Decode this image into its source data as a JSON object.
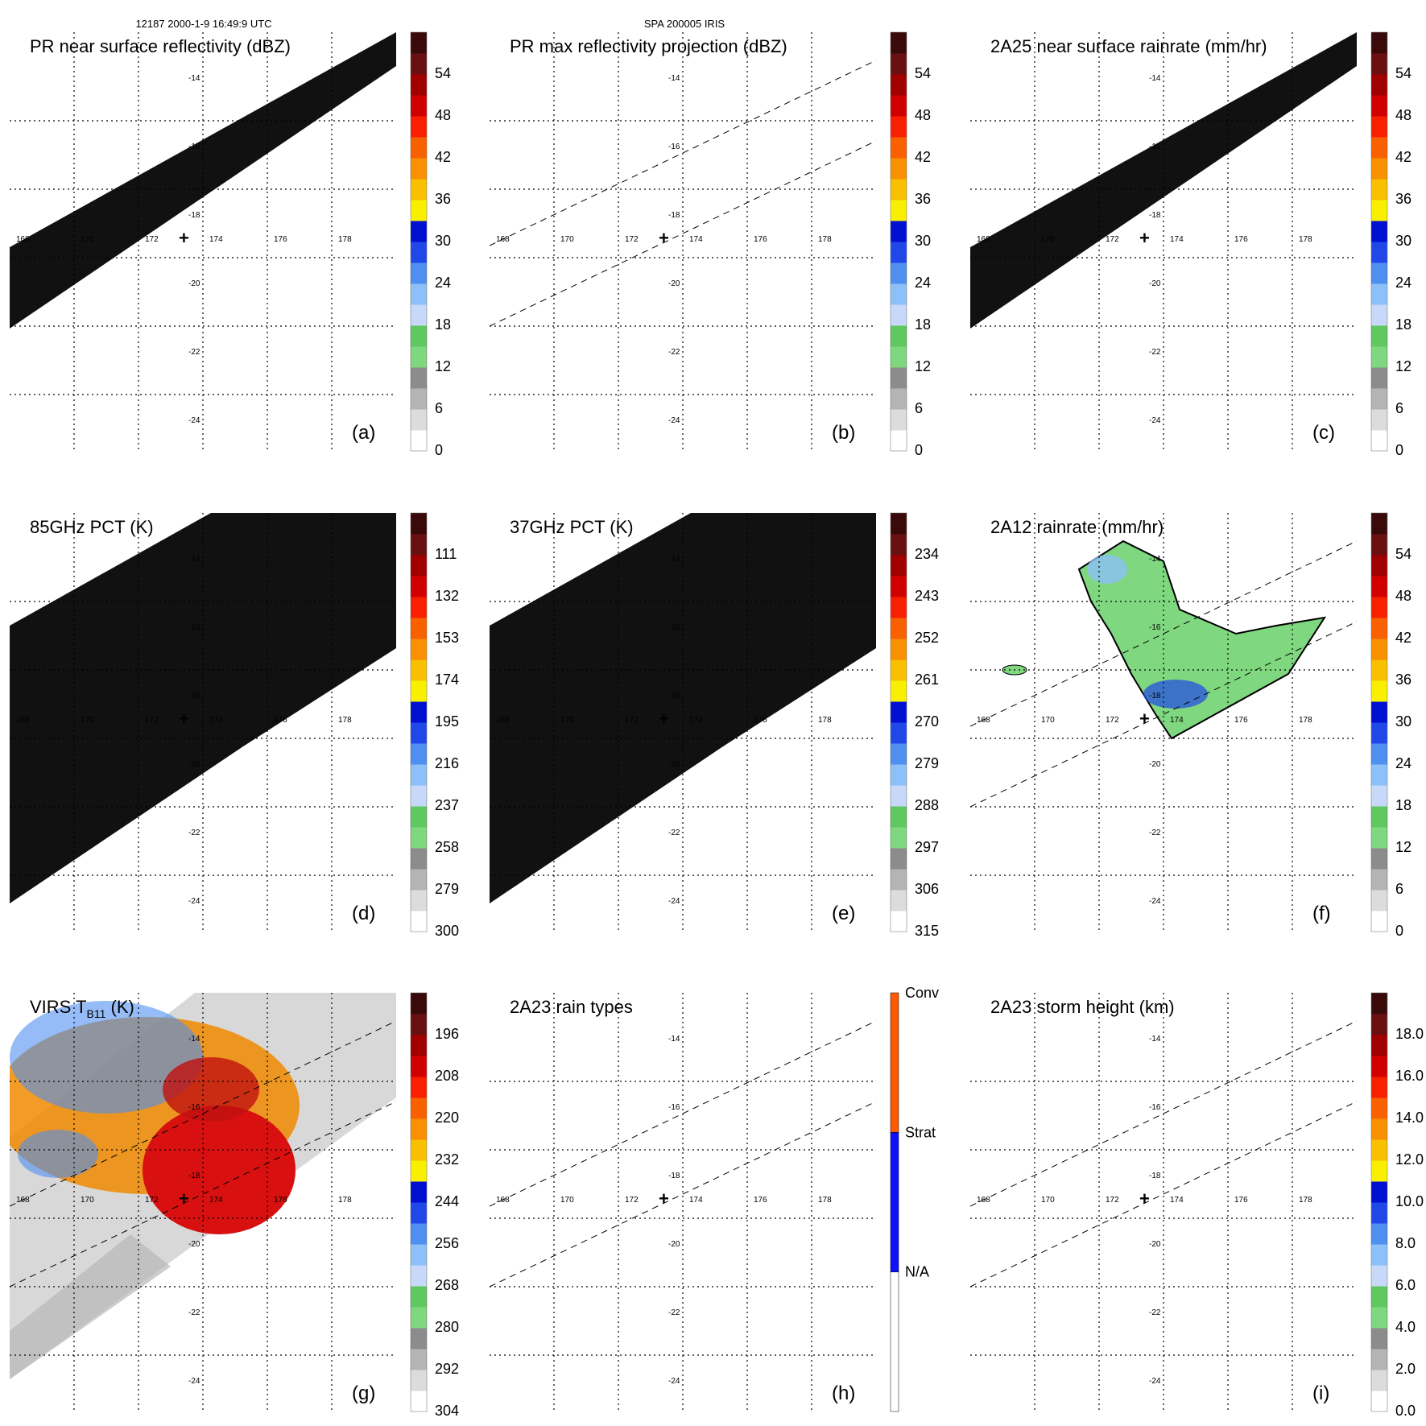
{
  "header": {
    "left": "12187 2000-1-9 16:49:9 UTC",
    "center": "SPA 200005 IRIS"
  },
  "colors": {
    "swath": "#111111",
    "ramp": [
      "#ffffff",
      "#dcdcdc",
      "#b4b4b4",
      "#8c8c8c",
      "#7fd77f",
      "#5fc85f",
      "#c8d8f8",
      "#8cc0f8",
      "#4f8ff0",
      "#2048e8",
      "#0010d0",
      "#f8f000",
      "#f8c000",
      "#f89000",
      "#f86000",
      "#f82000",
      "#d00000",
      "#a00000",
      "#6a1010",
      "#3a0a0a"
    ],
    "rain_types": {
      "Conv": "#ff5a00",
      "Strat": "#1010ff",
      "N/A": "#ffffff"
    }
  },
  "chart_data": [
    {
      "id": "a",
      "type": "heatmap",
      "title": "PR near surface reflectivity (dBZ)",
      "label": "(a)",
      "swath": true,
      "track": false,
      "vira": false,
      "colorbar": {
        "ticks": [
          "0",
          "6",
          "12",
          "18",
          "24",
          "30",
          "36",
          "42",
          "48",
          "54"
        ],
        "range": [
          0,
          60
        ]
      }
    },
    {
      "id": "b",
      "type": "heatmap",
      "title": "PR max reflectivity projection (dBZ)",
      "label": "(b)",
      "swath": false,
      "track": true,
      "vira": false,
      "colorbar": {
        "ticks": [
          "0",
          "6",
          "12",
          "18",
          "24",
          "30",
          "36",
          "42",
          "48",
          "54"
        ],
        "range": [
          0,
          60
        ]
      }
    },
    {
      "id": "c",
      "type": "heatmap",
      "title": "2A25 near surface rainrate (mm/hr)",
      "label": "(c)",
      "swath": true,
      "track": false,
      "vira": false,
      "colorbar": {
        "ticks": [
          "0",
          "6",
          "12",
          "18",
          "24",
          "30",
          "36",
          "42",
          "48",
          "54"
        ],
        "range": [
          0,
          60
        ]
      }
    },
    {
      "id": "d",
      "type": "heatmap",
      "title": "85GHz PCT (K)",
      "label": "(d)",
      "swath": "wide",
      "track": false,
      "vira": false,
      "colorbar": {
        "ticks": [
          "300",
          "279",
          "258",
          "237",
          "216",
          "195",
          "174",
          "153",
          "132",
          "111"
        ],
        "range": [
          300,
          90
        ]
      }
    },
    {
      "id": "e",
      "type": "heatmap",
      "title": "37GHz PCT (K)",
      "label": "(e)",
      "swath": "wide",
      "track": false,
      "vira": false,
      "colorbar": {
        "ticks": [
          "315",
          "306",
          "297",
          "288",
          "279",
          "270",
          "261",
          "252",
          "243",
          "234"
        ],
        "range": [
          315,
          225
        ]
      }
    },
    {
      "id": "f",
      "type": "heatmap",
      "title": "2A12 rainrate (mm/hr)",
      "label": "(f)",
      "swath": false,
      "track": true,
      "vira": false,
      "rainfield": true,
      "colorbar": {
        "ticks": [
          "0",
          "6",
          "12",
          "18",
          "24",
          "30",
          "36",
          "42",
          "48",
          "54"
        ],
        "range": [
          0,
          60
        ]
      }
    },
    {
      "id": "g",
      "type": "heatmap",
      "title": "VIRS T",
      "title_sub": "B11",
      "title_unit": " (K)",
      "label": "(g)",
      "swath": false,
      "track": true,
      "vira": true,
      "colorbar": {
        "ticks": [
          "304",
          "292",
          "280",
          "268",
          "256",
          "244",
          "232",
          "220",
          "208",
          "196"
        ],
        "range": [
          304,
          184
        ]
      }
    },
    {
      "id": "h",
      "type": "heatmap",
      "title": "2A23 rain types",
      "label": "(h)",
      "swath": false,
      "track": true,
      "vira": false,
      "colorbar": {
        "categorical": true,
        "ticks": [
          "N/A",
          "Strat",
          "Conv"
        ]
      }
    },
    {
      "id": "i",
      "type": "heatmap",
      "title": "2A23 storm height (km)",
      "label": "(i)",
      "swath": false,
      "track": true,
      "vira": false,
      "colorbar": {
        "ticks": [
          "0.0",
          "2.0",
          "4.0",
          "6.0",
          "8.0",
          "10.0",
          "12.0",
          "14.0",
          "16.0",
          "18.0"
        ],
        "range": [
          0,
          20
        ]
      }
    }
  ],
  "axes": {
    "lon_ticks": [
      "168",
      "170",
      "172",
      "174",
      "176",
      "178"
    ],
    "lat_ticks": [
      "-14",
      "-16",
      "-18",
      "-20",
      "-22",
      "-24"
    ],
    "center_marker": "+"
  }
}
